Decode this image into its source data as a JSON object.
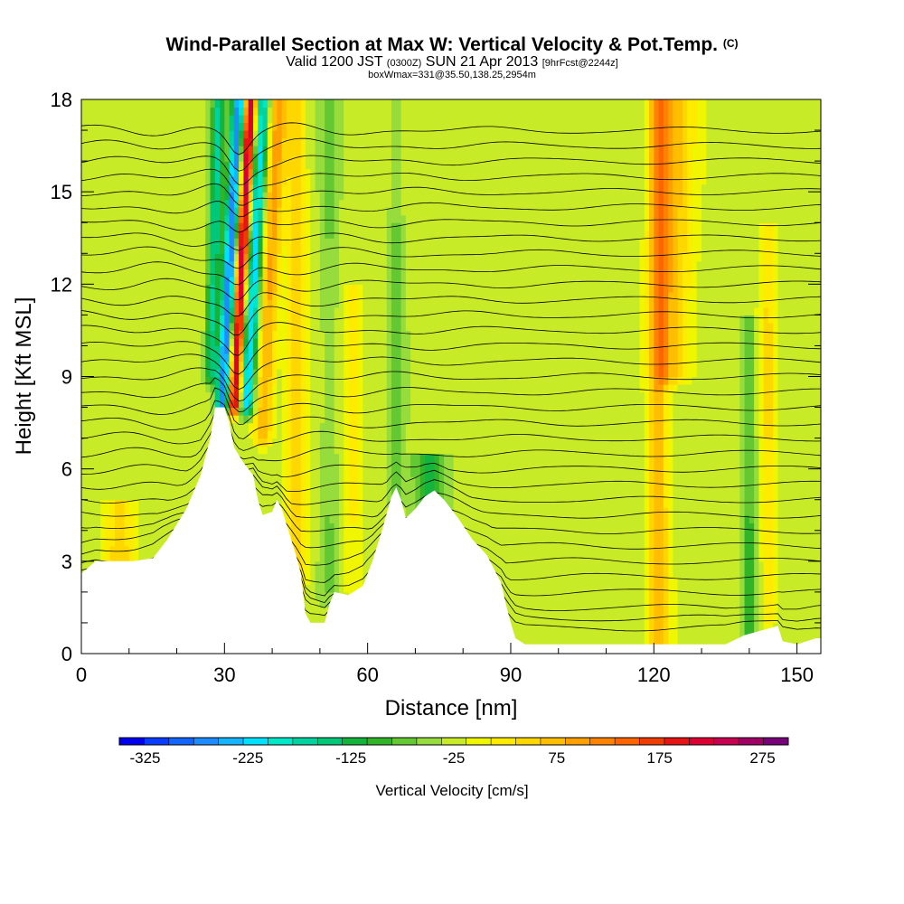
{
  "header": {
    "title": "Wind-Parallel Section at Max W: Vertical Velocity & Pot.Temp.",
    "copyright": "(C)",
    "valid_prefix": "Valid 1200 JST",
    "valid_utc": "(0300Z)",
    "valid_date": "SUN 21 Apr 2013",
    "forecast": "[9hrFcst@2244z]",
    "boxline": "boxWmax=331@35.50,138.25,2954m"
  },
  "chart_data": {
    "type": "heatmap",
    "xlabel": "Distance [nm]",
    "ylabel": "Height [Kft MSL]",
    "xlim": [
      0,
      155
    ],
    "ylim": [
      0,
      18
    ],
    "x_ticks": [
      "0",
      "30",
      "60",
      "90",
      "120",
      "150"
    ],
    "y_ticks": [
      "0",
      "3",
      "6",
      "9",
      "12",
      "15",
      "18"
    ],
    "colorbar": {
      "label": "Vertical Velocity [cm/s]",
      "ticks": [
        "-325",
        "-225",
        "-125",
        "-25",
        "75",
        "175",
        "275"
      ],
      "range": [
        -350,
        300
      ],
      "step": 25,
      "colors": [
        "#0000f0",
        "#0a3cff",
        "#1464ff",
        "#1e8cff",
        "#14b4ff",
        "#00e1ff",
        "#00e6c8",
        "#00d2a0",
        "#00c878",
        "#14b43c",
        "#32b428",
        "#64c832",
        "#96dc3c",
        "#c8eb28",
        "#f0f500",
        "#ffeb00",
        "#ffd700",
        "#ffbe00",
        "#ffa000",
        "#ff8200",
        "#ff6400",
        "#f03c00",
        "#e61414",
        "#dc0032",
        "#c80050",
        "#a00064",
        "#780078"
      ]
    },
    "terrain_kft": [
      [
        0,
        2.6
      ],
      [
        3,
        3.0
      ],
      [
        7,
        3.0
      ],
      [
        11,
        3.0
      ],
      [
        15,
        3.1
      ],
      [
        18,
        3.7
      ],
      [
        22,
        4.7
      ],
      [
        25,
        5.8
      ],
      [
        27,
        7.0
      ],
      [
        28,
        8.0
      ],
      [
        30,
        8.0
      ],
      [
        31,
        7.5
      ],
      [
        32,
        6.7
      ],
      [
        34,
        6.2
      ],
      [
        36,
        5.8
      ],
      [
        37,
        5.0
      ],
      [
        38,
        4.5
      ],
      [
        40,
        4.6
      ],
      [
        41,
        5.0
      ],
      [
        42,
        4.7
      ],
      [
        43,
        4.2
      ],
      [
        45,
        3.2
      ],
      [
        46,
        2.6
      ],
      [
        47,
        1.3
      ],
      [
        48,
        1.0
      ],
      [
        51,
        1.0
      ],
      [
        52,
        1.6
      ],
      [
        53,
        2.0
      ],
      [
        56,
        1.9
      ],
      [
        59,
        2.2
      ],
      [
        61,
        3.0
      ],
      [
        63,
        4.0
      ],
      [
        65,
        5.1
      ],
      [
        66,
        5.4
      ],
      [
        67,
        5.0
      ],
      [
        68,
        4.4
      ],
      [
        70,
        4.7
      ],
      [
        72,
        5.1
      ],
      [
        74,
        5.3
      ],
      [
        76,
        5.0
      ],
      [
        79,
        4.4
      ],
      [
        82,
        3.7
      ],
      [
        85,
        3.2
      ],
      [
        88,
        2.3
      ],
      [
        89,
        1.6
      ],
      [
        90,
        1.0
      ],
      [
        91,
        0.5
      ],
      [
        93,
        0.3
      ],
      [
        100,
        0.3
      ],
      [
        118,
        0.3
      ],
      [
        135,
        0.3
      ],
      [
        139,
        0.6
      ],
      [
        146,
        0.9
      ],
      [
        147,
        0.4
      ],
      [
        150,
        0.3
      ],
      [
        154,
        0.5
      ],
      [
        155,
        0.5
      ]
    ],
    "w_features": [
      {
        "x": 29.8,
        "y0": 8.0,
        "y1": 18,
        "slope": 0.35,
        "width": 1.6,
        "w": -325
      },
      {
        "x": 31.8,
        "y0": 8.0,
        "y1": 18,
        "slope": 0.35,
        "width": 1.7,
        "w": 331
      },
      {
        "x": 34.5,
        "y0": 8.0,
        "y1": 18,
        "slope": 0.35,
        "width": 1.6,
        "w": -230
      },
      {
        "x": 27.0,
        "y0": 9.0,
        "y1": 18,
        "slope": 0.2,
        "width": 1.3,
        "w": -140
      },
      {
        "x": 38.0,
        "y0": 7.0,
        "y1": 18,
        "slope": 0.3,
        "width": 2.0,
        "w": 120
      },
      {
        "x": 45.0,
        "y0": 2.0,
        "y1": 18,
        "slope": 0.0,
        "width": 2.0,
        "w": 80
      },
      {
        "x": 52.0,
        "y0": 2.0,
        "y1": 18,
        "slope": 0.0,
        "width": 2.0,
        "w": -40
      },
      {
        "x": 57.0,
        "y0": 2.0,
        "y1": 12,
        "slope": 0.0,
        "width": 2.0,
        "w": 40
      },
      {
        "x": 66.0,
        "y0": 5.0,
        "y1": 18,
        "slope": 0.0,
        "width": 1.5,
        "w": -45
      },
      {
        "x": 73.0,
        "y0": 3.5,
        "y1": 6.5,
        "slope": 0.0,
        "width": 3.5,
        "w": -90
      },
      {
        "x": 121.0,
        "y0": 0.3,
        "y1": 18,
        "slope": 0.0,
        "width": 2.0,
        "w": 110
      },
      {
        "x": 124.0,
        "y0": 9.0,
        "y1": 18,
        "slope": 0.0,
        "width": 4.0,
        "w": 95
      },
      {
        "x": 140.0,
        "y0": 0.5,
        "y1": 11,
        "slope": 0.0,
        "width": 1.5,
        "w": -70
      },
      {
        "x": 144.0,
        "y0": 1.0,
        "y1": 14,
        "slope": 0.0,
        "width": 1.5,
        "w": 60
      },
      {
        "x": 8.0,
        "y0": 3.0,
        "y1": 5.0,
        "slope": 0.0,
        "width": 3.0,
        "w": 75
      }
    ]
  }
}
